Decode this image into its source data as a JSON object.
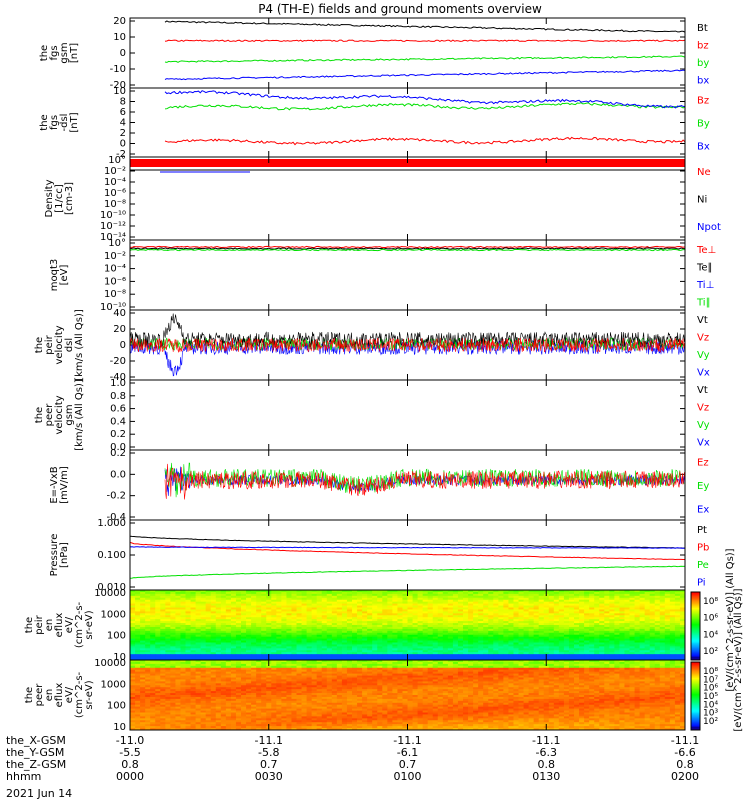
{
  "title": "P4 (TH-E) fields and ground moments overview",
  "date_label": "2021 Jun 14",
  "colors": {
    "black": "#000000",
    "red": "#ff0000",
    "green": "#00e000",
    "blue": "#0000ff"
  },
  "x_axis": {
    "row_labels": [
      "the_X-GSM",
      "the_Y-GSM",
      "the_Z-GSM",
      "hhmm"
    ],
    "columns": [
      [
        "-11.0",
        "-5.5",
        "0.8",
        "0000"
      ],
      [
        "-11.1",
        "-5.8",
        "0.7",
        "0030"
      ],
      [
        "-11.1",
        "-6.1",
        "0.7",
        "0100"
      ],
      [
        "-11.1",
        "-6.3",
        "0.8",
        "0130"
      ],
      [
        "-11.1",
        "-6.6",
        "0.8",
        "0200"
      ]
    ]
  },
  "chart_data": [
    {
      "type": "line",
      "ylabel": [
        "the",
        "fgs",
        "gsm",
        "[nT]"
      ],
      "ylim": [
        -20,
        20
      ],
      "yticks": [
        "20",
        "10",
        "0",
        "-10",
        "-20"
      ],
      "series": [
        {
          "name": "Bt",
          "color": "black",
          "level": 18,
          "end": 12
        },
        {
          "name": "bz",
          "color": "red",
          "level": 7,
          "end": 7
        },
        {
          "name": "by",
          "color": "green",
          "level": -5,
          "end": -2
        },
        {
          "name": "bx",
          "color": "blue",
          "level": -15,
          "end": -10
        }
      ]
    },
    {
      "type": "line",
      "ylabel": [
        "the",
        "fgs",
        "-dsl",
        "[nT]"
      ],
      "ylim": [
        -3,
        11
      ],
      "yticks": [
        "10",
        "8",
        "6",
        "4",
        "2",
        "0",
        "-2"
      ],
      "series": [
        {
          "name": "Bz",
          "color": "red",
          "level": 0,
          "end": 0.5
        },
        {
          "name": "By",
          "color": "green",
          "level": 7,
          "end": 7.5
        },
        {
          "name": "Bx",
          "color": "blue",
          "level": 10,
          "end": 7.5
        }
      ]
    },
    {
      "type": "line",
      "ylabel": [
        "Density",
        "[1/cc]",
        "[cm-3]"
      ],
      "ylim": [
        -15,
        1
      ],
      "yticks": [
        "10°",
        "10⁻²",
        "10⁻⁴",
        "10⁻⁶",
        "10⁻⁸",
        "10⁻¹⁰",
        "10⁻¹²",
        "10⁻¹⁴"
      ],
      "series": [
        {
          "name": "Ne",
          "color": "red"
        },
        {
          "name": "Ni",
          "color": "black"
        },
        {
          "name": "Npot",
          "color": "blue"
        }
      ]
    },
    {
      "type": "line",
      "ylabel": [
        "moqt3",
        "[eV]"
      ],
      "ylim": [
        -15,
        1
      ],
      "yticks": [
        "10°",
        "10⁻²",
        "10⁻⁴",
        "10⁻⁶",
        "10⁻⁸",
        "10⁻¹⁰"
      ],
      "series": [
        {
          "name": "Te⊥",
          "color": "red"
        },
        {
          "name": "Te∥",
          "color": "black"
        },
        {
          "name": "Ti⊥",
          "color": "blue"
        },
        {
          "name": "Ti∥",
          "color": "green"
        }
      ]
    },
    {
      "type": "line",
      "ylabel": [
        "the",
        "peir",
        "velocity",
        "dsl",
        "[km/s (All Qs)]"
      ],
      "ylim": [
        -40,
        40
      ],
      "yticks": [
        "40",
        "20",
        "0",
        "-20",
        "-40"
      ],
      "series": [
        {
          "name": "Vt",
          "color": "black"
        },
        {
          "name": "Vz",
          "color": "red"
        },
        {
          "name": "Vy",
          "color": "green"
        },
        {
          "name": "Vx",
          "color": "blue"
        }
      ]
    },
    {
      "type": "line",
      "ylabel": [
        "the",
        "peer",
        "velocity",
        "gsm",
        "[km/s (All Qs)]"
      ],
      "ylim": [
        0,
        1
      ],
      "yticks": [
        "1.0",
        "0.8",
        "0.6",
        "0.4",
        "0.2",
        "0.0"
      ],
      "series": [
        {
          "name": "Vt",
          "color": "black"
        },
        {
          "name": "Vz",
          "color": "red"
        },
        {
          "name": "Vy",
          "color": "green"
        },
        {
          "name": "Vx",
          "color": "blue"
        }
      ]
    },
    {
      "type": "line",
      "ylabel": [
        "E=-VxB",
        "[mV/m]"
      ],
      "ylim": [
        -0.4,
        0.3
      ],
      "yticks": [
        "0.2",
        "0.0",
        "-0.2",
        "-0.4"
      ],
      "series": [
        {
          "name": "Ez",
          "color": "red"
        },
        {
          "name": "Ey",
          "color": "green"
        },
        {
          "name": "Ex",
          "color": "blue"
        }
      ]
    },
    {
      "type": "line",
      "ylabel": [
        "Pressure",
        "[nPa]"
      ],
      "ylim": [
        0.005,
        1
      ],
      "yticks": [
        "1.000",
        "0.100",
        "0.010"
      ],
      "series": [
        {
          "name": "Pt",
          "color": "black",
          "start": 0.3,
          "end": 0.12
        },
        {
          "name": "Pb",
          "color": "red",
          "start": 0.18,
          "end": 0.05
        },
        {
          "name": "Pe",
          "color": "green",
          "start": 0.012,
          "end": 0.03
        },
        {
          "name": "Pi",
          "color": "blue",
          "start": 0.13,
          "end": 0.12
        }
      ]
    },
    {
      "type": "heatmap",
      "ylabel": [
        "the",
        "peir",
        "en",
        "eflux",
        "eV/",
        "(cm^2-s-",
        "sr-eV)"
      ],
      "ylim": [
        5,
        30000
      ],
      "yticks": [
        "10000",
        "1000",
        "100",
        "10"
      ]
    },
    {
      "type": "heatmap",
      "ylabel": [
        "the",
        "peer",
        "en",
        "eflux",
        "eV/",
        "(cm^2-s-",
        "sr-eV)"
      ],
      "ylim": [
        5,
        30000
      ],
      "yticks": [
        "10000",
        "1000",
        "100",
        "10"
      ]
    }
  ],
  "colorbar": {
    "upper_ticks": [
      "10⁸",
      "10⁶",
      "10⁴",
      "10²"
    ],
    "lower_ticks": [
      "10⁸",
      "10⁷",
      "10⁶",
      "10⁵",
      "10⁴",
      "10³",
      "10²"
    ],
    "label": "[eV/(cm^2-s-sr-eV)] (All Qs)]",
    "label_overlap": "[eV/(cm^2-s-sr-eV)] (All Qs)]"
  }
}
